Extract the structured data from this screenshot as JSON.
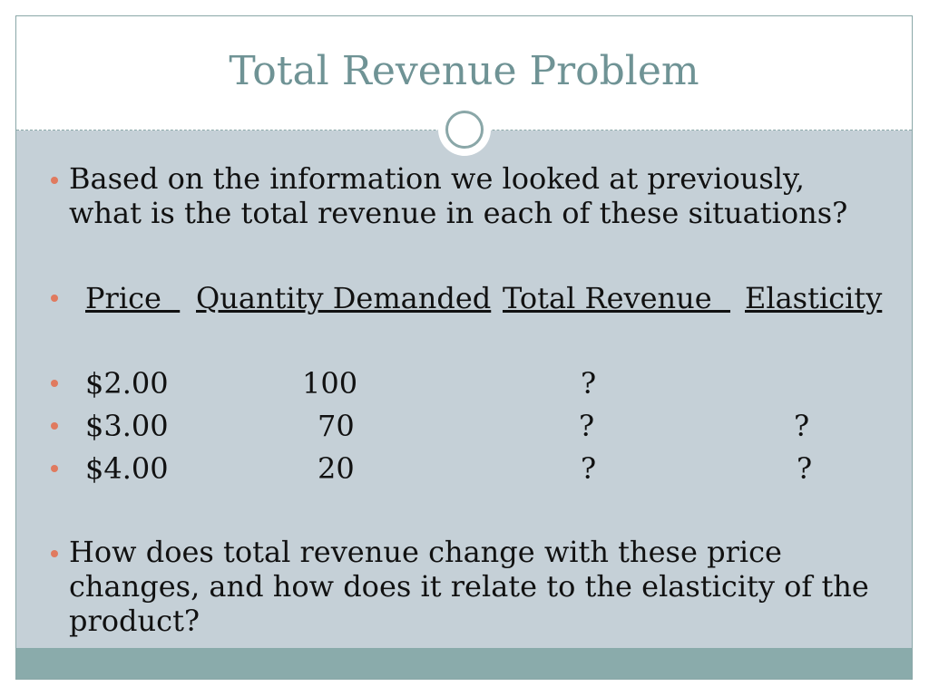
{
  "title": "Total Revenue Problem",
  "bullets": {
    "intro": "Based on the information we looked at previously, what is the total revenue in each of these situations?",
    "outro": "How does total revenue change with these price changes, and how does it relate to the elasticity of the product?"
  },
  "table": {
    "headers": {
      "price": "Price  ",
      "quantity": "Quantity Demanded",
      "total_revenue": "Total Revenue  ",
      "elasticity": "Elasticity"
    },
    "rows": [
      {
        "price": "$2.00",
        "quantity": "100",
        "total_revenue": "?",
        "elasticity": ""
      },
      {
        "price": "$3.00",
        "quantity": "70",
        "total_revenue": "?",
        "elasticity": "?"
      },
      {
        "price": "$4.00",
        "quantity": "20",
        "total_revenue": "?",
        "elasticity": "?"
      }
    ]
  },
  "colors": {
    "title": "#6f9395",
    "body_bg": "#c5d0d7",
    "footer": "#8aabab",
    "bullet": "#e07a5f"
  }
}
